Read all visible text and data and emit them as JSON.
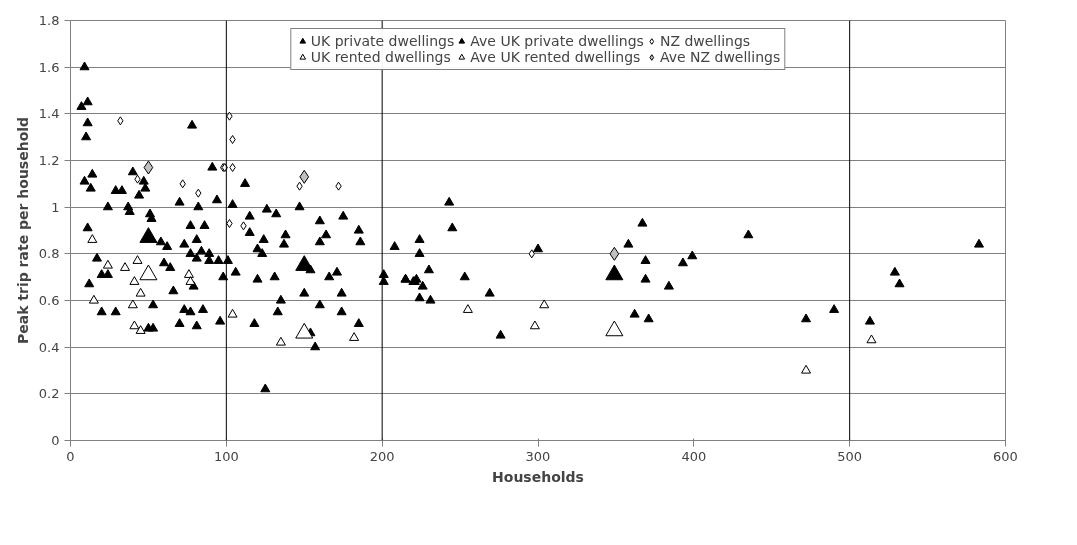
{
  "chart_data": {
    "type": "scatter",
    "xlabel": "Households",
    "ylabel": "Peak trip rate per household",
    "xlim": [
      0,
      600
    ],
    "xticks": [
      0,
      100,
      200,
      300,
      400,
      500,
      600
    ],
    "ylim": [
      0,
      1.8
    ],
    "yticks": [
      0,
      0.2,
      0.4,
      0.6,
      0.8,
      1,
      1.2,
      1.4,
      1.6,
      1.8
    ],
    "grid": "y",
    "legend": "top",
    "ref_lines": [
      {
        "axis": "x",
        "value": 100,
        "color": "#000000"
      },
      {
        "axis": "x",
        "value": 200,
        "color": "#000000"
      },
      {
        "axis": "x",
        "value": 500,
        "color": "#000000"
      }
    ],
    "series": [
      {
        "name": "UK private dwellings",
        "color": "#000000",
        "marker": "triangle",
        "x": [
          9,
          7,
          11,
          11,
          10,
          9,
          14,
          13,
          11,
          12,
          17,
          20,
          24,
          20,
          29,
          24,
          29,
          33,
          37,
          38,
          40,
          44,
          47,
          48,
          51,
          52,
          58,
          62,
          53,
          50,
          53,
          60,
          64,
          66,
          70,
          73,
          77,
          78,
          77,
          81,
          81,
          82,
          84,
          86,
          89,
          89,
          95,
          91,
          94,
          73,
          77,
          70,
          81,
          85,
          96,
          79,
          98,
          112,
          104,
          126,
          132,
          147,
          160,
          175,
          185,
          186,
          115,
          115,
          124,
          138,
          137,
          120,
          123,
          164,
          160,
          101,
          106,
          120,
          131,
          154,
          166,
          171,
          201,
          201,
          215,
          220,
          208,
          150,
          174,
          135,
          160,
          133,
          174,
          118,
          185,
          154,
          157,
          125,
          215,
          221,
          222,
          224,
          224,
          230,
          226,
          224,
          231,
          243,
          245,
          253,
          269,
          276,
          300,
          367,
          358,
          369,
          369,
          384,
          393,
          399,
          362,
          371,
          435,
          472,
          490,
          513,
          529,
          532,
          583
        ],
        "values": [
          1.6,
          1.43,
          1.45,
          1.36,
          1.3,
          1.11,
          1.14,
          1.08,
          0.91,
          0.67,
          0.78,
          0.71,
          0.71,
          0.55,
          0.55,
          1.0,
          1.07,
          1.07,
          1.0,
          0.98,
          1.15,
          1.05,
          1.11,
          1.08,
          0.97,
          0.95,
          0.85,
          0.83,
          0.58,
          0.48,
          0.48,
          0.76,
          0.74,
          0.64,
          1.02,
          0.84,
          0.92,
          1.35,
          0.8,
          0.78,
          0.86,
          1.0,
          0.81,
          0.92,
          0.8,
          0.77,
          0.77,
          1.17,
          1.03,
          0.56,
          0.55,
          0.5,
          0.49,
          0.56,
          0.51,
          0.66,
          0.7,
          1.1,
          1.01,
          0.99,
          0.97,
          1.0,
          0.94,
          0.96,
          0.9,
          0.85,
          0.96,
          0.89,
          0.86,
          0.88,
          0.84,
          0.82,
          0.8,
          0.88,
          0.85,
          0.77,
          0.72,
          0.69,
          0.7,
          0.73,
          0.7,
          0.72,
          0.71,
          0.68,
          0.69,
          0.68,
          0.83,
          0.63,
          0.63,
          0.6,
          0.58,
          0.55,
          0.55,
          0.5,
          0.5,
          0.46,
          0.4,
          0.22,
          0.69,
          0.68,
          0.69,
          0.86,
          0.8,
          0.73,
          0.66,
          0.61,
          0.6,
          1.02,
          0.91,
          0.7,
          0.63,
          0.45,
          0.82,
          0.93,
          0.84,
          0.77,
          0.69,
          0.66,
          0.76,
          0.79,
          0.54,
          0.52,
          0.88,
          0.52,
          0.56,
          0.51,
          0.72,
          0.67,
          0.84
        ]
      },
      {
        "name": "UK rented dwellings",
        "color": "#ffffff",
        "marker": "triangle",
        "x": [
          14,
          15,
          24,
          35,
          43,
          41,
          45,
          40,
          41,
          45,
          76,
          77,
          104,
          135,
          182,
          255,
          304,
          298,
          472,
          514
        ],
        "values": [
          0.86,
          0.6,
          0.75,
          0.74,
          0.77,
          0.68,
          0.63,
          0.58,
          0.49,
          0.47,
          0.71,
          0.68,
          0.54,
          0.42,
          0.44,
          0.56,
          0.58,
          0.49,
          0.3,
          0.43
        ]
      },
      {
        "name": "Ave UK private dwellings",
        "color": "#000000",
        "marker": "triangle",
        "x": [
          50,
          150,
          349
        ],
        "values": [
          0.87,
          0.75,
          0.71
        ]
      },
      {
        "name": "Ave UK rented dwellings",
        "color": "#ffffff",
        "marker": "triangle",
        "x": [
          50,
          150,
          349
        ],
        "values": [
          0.71,
          0.46,
          0.47
        ]
      },
      {
        "name": "NZ dwellings",
        "color": "#ffffff",
        "marker": "diamond",
        "x": [
          32,
          43,
          72,
          82,
          98,
          102,
          104,
          99,
          104,
          102,
          111,
          147,
          172,
          296
        ],
        "values": [
          1.37,
          1.12,
          1.1,
          1.06,
          1.17,
          1.39,
          1.29,
          1.17,
          1.17,
          0.93,
          0.92,
          1.09,
          1.09,
          0.8
        ]
      },
      {
        "name": "Ave NZ dwellings",
        "color": "#c0c0c0",
        "marker": "diamond",
        "x": [
          50,
          150,
          349
        ],
        "values": [
          1.17,
          1.13,
          0.8
        ]
      }
    ]
  }
}
